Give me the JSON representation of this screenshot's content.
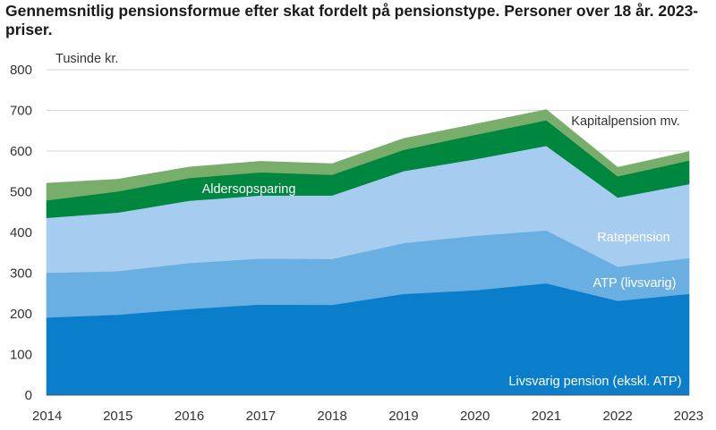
{
  "title": "Gennemsnitlig pensionsformue efter skat fordelt på pensionstype. Personer over 18 år. 2023-priser.",
  "chart_data": {
    "type": "area",
    "stacked": true,
    "x": [
      "2014",
      "2015",
      "2016",
      "2017",
      "2018",
      "2019",
      "2020",
      "2021",
      "2022",
      "2023"
    ],
    "ylim": [
      0,
      800
    ],
    "yticks": [
      0,
      100,
      200,
      300,
      400,
      500,
      600,
      700,
      800
    ],
    "ylabel": "Tusinde kr.",
    "grid": "horizontal",
    "series": [
      {
        "name": "Livsvarig pension (ekskl. ATP)",
        "color": "#0a7dcb",
        "values": [
          191,
          198,
          212,
          223,
          222,
          249,
          258,
          275,
          232,
          249
        ]
      },
      {
        "name": "ATP (livsvarig)",
        "color": "#6aafe2",
        "values": [
          110,
          107,
          113,
          113,
          113,
          125,
          134,
          130,
          84,
          88
        ]
      },
      {
        "name": "Ratepension",
        "color": "#a6cdef",
        "values": [
          135,
          144,
          153,
          155,
          156,
          177,
          188,
          208,
          170,
          182
        ]
      },
      {
        "name": "Aldersopsparing",
        "color": "#00873f",
        "values": [
          43,
          52,
          56,
          57,
          51,
          52,
          60,
          63,
          52,
          58
        ]
      },
      {
        "name": "Kapitalpension mv.",
        "color": "#78ad6b",
        "values": [
          42,
          30,
          27,
          27,
          27,
          28,
          26,
          26,
          22,
          22
        ]
      }
    ]
  }
}
